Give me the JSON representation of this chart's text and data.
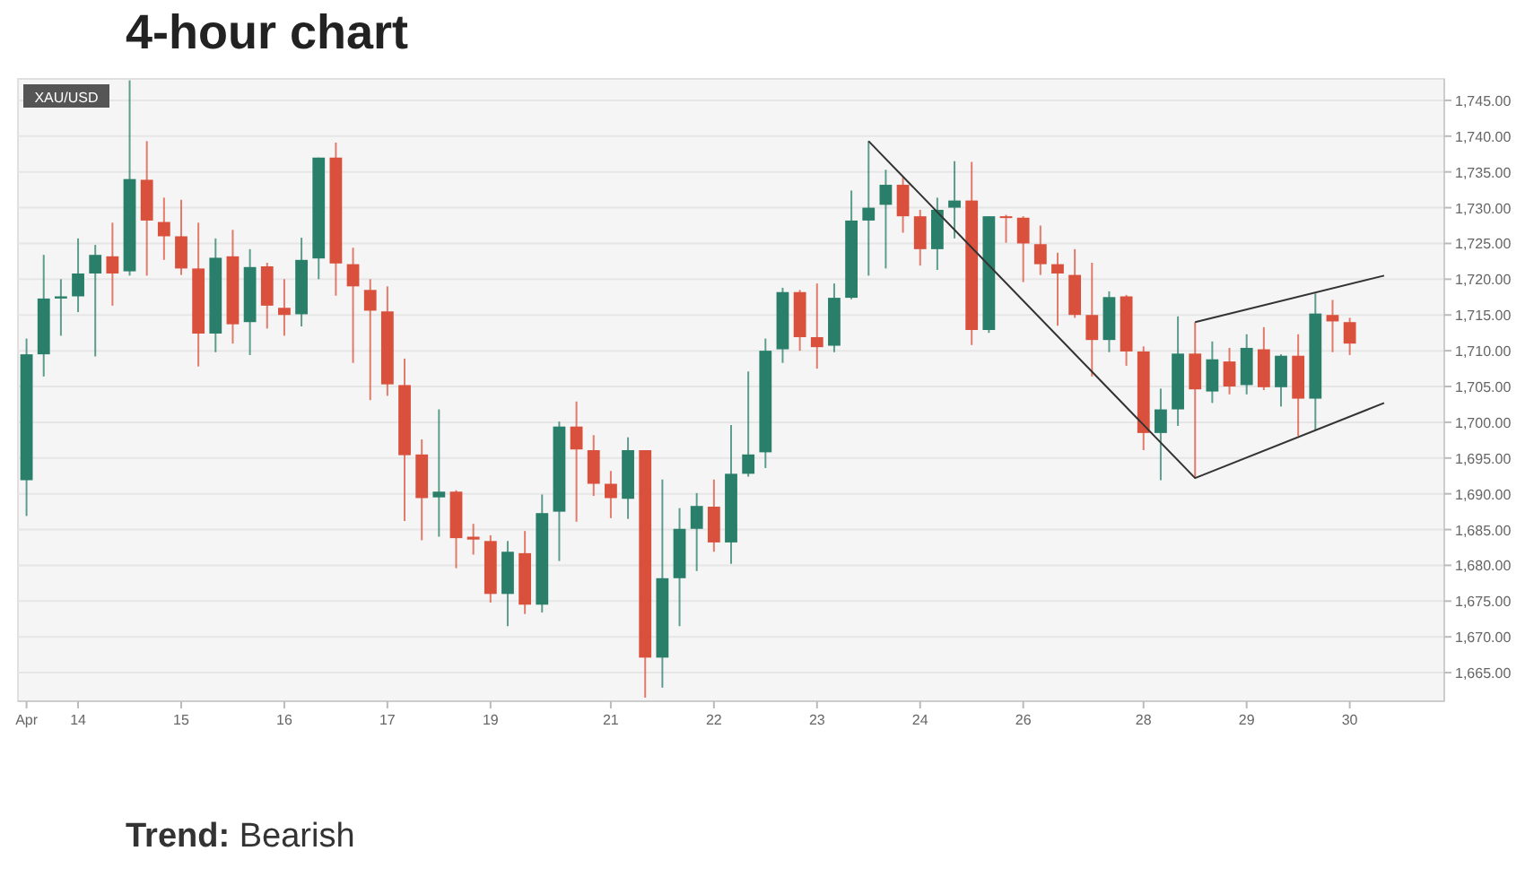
{
  "chart_data": {
    "type": "candlestick",
    "title": "4-hour chart",
    "subtitle": "XAU/USD",
    "categories": [
      "Apr",
      null,
      null,
      "14",
      null,
      null,
      null,
      null,
      null,
      "15",
      null,
      null,
      null,
      null,
      null,
      "16",
      null,
      null,
      null,
      null,
      null,
      "17",
      null,
      null,
      null,
      null,
      null,
      "19",
      null,
      null,
      null,
      null,
      null,
      null,
      "21",
      null,
      null,
      null,
      null,
      null,
      "22",
      null,
      null,
      null,
      null,
      null,
      "23",
      null,
      null,
      null,
      null,
      null,
      "24",
      null,
      null,
      null,
      null,
      null,
      "26",
      null,
      null,
      null,
      null,
      null,
      null,
      "28",
      null,
      null,
      null,
      null,
      null,
      "29",
      null,
      null,
      null,
      null,
      null,
      "30",
      null,
      null,
      null,
      null,
      null
    ],
    "ohlc": [
      [
        1691.9,
        1711.7,
        1686.9,
        1709.5
      ],
      [
        1709.5,
        1723.4,
        1706.4,
        1717.3
      ],
      [
        1717.3,
        1720.0,
        1712.1,
        1717.6
      ],
      [
        1717.6,
        1725.7,
        1715.4,
        1720.8
      ],
      [
        1720.8,
        1724.8,
        1709.2,
        1723.4
      ],
      [
        1723.2,
        1727.9,
        1716.3,
        1720.8
      ],
      [
        1721.1,
        1747.8,
        1720.5,
        1734.0
      ],
      [
        1733.9,
        1739.3,
        1720.5,
        1728.2
      ],
      [
        1728.0,
        1731.4,
        1722.7,
        1726.0
      ],
      [
        1726.0,
        1731.1,
        1720.6,
        1721.5
      ],
      [
        1721.5,
        1727.9,
        1707.8,
        1712.4
      ],
      [
        1712.4,
        1725.7,
        1709.8,
        1723.0
      ],
      [
        1723.2,
        1726.9,
        1711.0,
        1713.7
      ],
      [
        1714.0,
        1724.2,
        1709.4,
        1721.7
      ],
      [
        1721.8,
        1722.3,
        1713.1,
        1716.3
      ],
      [
        1716.0,
        1720.0,
        1712.1,
        1715.0
      ],
      [
        1715.1,
        1725.8,
        1713.4,
        1722.7
      ],
      [
        1722.9,
        1737.0,
        1720.0,
        1737.0
      ],
      [
        1737.0,
        1739.1,
        1717.7,
        1722.2
      ],
      [
        1722.1,
        1724.4,
        1708.3,
        1719.0
      ],
      [
        1718.5,
        1720.0,
        1703.1,
        1715.6
      ],
      [
        1715.5,
        1719.0,
        1703.7,
        1705.3
      ],
      [
        1705.2,
        1708.9,
        1686.2,
        1695.4
      ],
      [
        1695.5,
        1697.6,
        1683.5,
        1689.4
      ],
      [
        1689.5,
        1701.8,
        1684.0,
        1690.3
      ],
      [
        1690.3,
        1690.5,
        1679.6,
        1683.8
      ],
      [
        1684.0,
        1685.8,
        1681.5,
        1683.6
      ],
      [
        1683.4,
        1684.2,
        1674.8,
        1676.0
      ],
      [
        1676.0,
        1683.4,
        1671.5,
        1681.9
      ],
      [
        1681.7,
        1684.8,
        1673.2,
        1674.5
      ],
      [
        1674.5,
        1689.9,
        1673.4,
        1687.3
      ],
      [
        1687.5,
        1700.1,
        1680.6,
        1699.4
      ],
      [
        1699.4,
        1702.9,
        1686.1,
        1696.2
      ],
      [
        1696.1,
        1698.2,
        1689.7,
        1691.4
      ],
      [
        1691.4,
        1693.2,
        1686.6,
        1689.4
      ],
      [
        1689.3,
        1697.9,
        1686.5,
        1696.1
      ],
      [
        1696.1,
        1696.1,
        1661.5,
        1667.1
      ],
      [
        1667.1,
        1692.0,
        1662.9,
        1678.2
      ],
      [
        1678.2,
        1688.0,
        1671.5,
        1685.1
      ],
      [
        1685.1,
        1690.1,
        1679.2,
        1688.3
      ],
      [
        1688.2,
        1692.0,
        1681.9,
        1683.2
      ],
      [
        1683.2,
        1699.6,
        1680.2,
        1692.8
      ],
      [
        1692.8,
        1707.1,
        1692.4,
        1695.5
      ],
      [
        1695.8,
        1711.7,
        1693.6,
        1710.0
      ],
      [
        1710.2,
        1718.8,
        1708.3,
        1718.2
      ],
      [
        1718.2,
        1718.5,
        1710.0,
        1711.9
      ],
      [
        1711.9,
        1719.4,
        1707.5,
        1710.5
      ],
      [
        1710.7,
        1719.4,
        1709.8,
        1717.4
      ],
      [
        1717.4,
        1732.4,
        1717.2,
        1728.2
      ],
      [
        1728.2,
        1739.3,
        1720.5,
        1730.0
      ],
      [
        1730.4,
        1735.3,
        1721.5,
        1733.2
      ],
      [
        1733.2,
        1734.2,
        1726.5,
        1728.8
      ],
      [
        1728.8,
        1729.7,
        1721.9,
        1724.2
      ],
      [
        1724.2,
        1731.4,
        1721.3,
        1729.7
      ],
      [
        1730.0,
        1736.5,
        1725.7,
        1731.0
      ],
      [
        1731.0,
        1736.4,
        1710.8,
        1712.9
      ],
      [
        1712.9,
        1728.8,
        1712.5,
        1728.8
      ],
      [
        1728.8,
        1729.0,
        1725.1,
        1728.7
      ],
      [
        1728.6,
        1728.8,
        1719.6,
        1725.0
      ],
      [
        1724.9,
        1727.5,
        1720.6,
        1722.1
      ],
      [
        1722.1,
        1723.7,
        1713.5,
        1720.8
      ],
      [
        1720.6,
        1724.2,
        1714.6,
        1715.0
      ],
      [
        1715.0,
        1722.3,
        1706.4,
        1711.5
      ],
      [
        1711.5,
        1718.3,
        1709.8,
        1717.5
      ],
      [
        1717.6,
        1717.8,
        1707.9,
        1709.9
      ],
      [
        1709.9,
        1710.6,
        1696.1,
        1698.5
      ],
      [
        1698.5,
        1704.7,
        1691.9,
        1701.8
      ],
      [
        1701.8,
        1714.8,
        1699.5,
        1709.6
      ],
      [
        1709.6,
        1714.0,
        1692.2,
        1704.6
      ],
      [
        1704.3,
        1711.3,
        1702.7,
        1708.8
      ],
      [
        1708.5,
        1710.4,
        1703.9,
        1705.0
      ],
      [
        1705.2,
        1712.3,
        1703.9,
        1710.4
      ],
      [
        1710.2,
        1713.3,
        1704.5,
        1704.9
      ],
      [
        1704.9,
        1709.5,
        1702.2,
        1709.3
      ],
      [
        1709.3,
        1712.3,
        1698.1,
        1703.3
      ],
      [
        1703.3,
        1718.0,
        1698.9,
        1715.2
      ],
      [
        1715.0,
        1717.1,
        1709.8,
        1714.1
      ],
      [
        1714.0,
        1714.6,
        1709.4,
        1711.0
      ],
      null,
      null,
      null,
      null,
      null
    ],
    "colors": [
      "#2a7f6b",
      "#2a7f6b",
      "#2a7f6b",
      "#2a7f6b",
      "#2a7f6b",
      "#d9513c",
      "#2a7f6b",
      "#d9513c",
      "#d9513c",
      "#d9513c",
      "#d9513c",
      "#2a7f6b",
      "#d9513c",
      "#2a7f6b",
      "#d9513c",
      "#d9513c",
      "#2a7f6b",
      "#2a7f6b",
      "#d9513c",
      "#d9513c",
      "#d9513c",
      "#d9513c",
      "#d9513c",
      "#d9513c",
      "#2a7f6b",
      "#d9513c",
      "#d9513c",
      "#d9513c",
      "#2a7f6b",
      "#d9513c",
      "#2a7f6b",
      "#2a7f6b",
      "#d9513c",
      "#d9513c",
      "#d9513c",
      "#2a7f6b",
      "#d9513c",
      "#2a7f6b",
      "#2a7f6b",
      "#2a7f6b",
      "#d9513c",
      "#2a7f6b",
      "#2a7f6b",
      "#2a7f6b",
      "#2a7f6b",
      "#d9513c",
      "#d9513c",
      "#2a7f6b",
      "#2a7f6b",
      "#2a7f6b",
      "#2a7f6b",
      "#d9513c",
      "#d9513c",
      "#2a7f6b",
      "#2a7f6b",
      "#d9513c",
      "#2a7f6b",
      "#d9513c",
      "#d9513c",
      "#d9513c",
      "#d9513c",
      "#d9513c",
      "#d9513c",
      "#2a7f6b",
      "#d9513c",
      "#d9513c",
      "#2a7f6b",
      "#2a7f6b",
      "#d9513c",
      "#2a7f6b",
      "#d9513c",
      "#2a7f6b",
      "#d9513c",
      "#2a7f6b",
      "#d9513c",
      "#2a7f6b",
      "#d9513c",
      "#d9513c",
      null,
      null,
      null,
      null,
      null
    ],
    "series": [
      {
        "type": "line",
        "color": "#333333",
        "values": [
          null,
          null,
          null,
          null,
          null,
          null,
          null,
          null,
          null,
          null,
          null,
          null,
          null,
          null,
          null,
          null,
          null,
          null,
          null,
          null,
          null,
          null,
          null,
          null,
          null,
          null,
          null,
          null,
          null,
          null,
          null,
          null,
          null,
          null,
          null,
          null,
          null,
          null,
          null,
          null,
          null,
          null,
          null,
          null,
          null,
          null,
          null,
          null,
          null,
          1739.3,
          null,
          null,
          null,
          null,
          null,
          null,
          null,
          null,
          null,
          null,
          null,
          null,
          null,
          null,
          null,
          null,
          null,
          null,
          1692.2,
          null,
          null,
          null,
          null,
          null,
          null,
          null,
          null,
          null,
          null,
          1702.7,
          null,
          null,
          null
        ]
      },
      {
        "type": "line",
        "color": "#333333",
        "values": [
          null,
          null,
          null,
          null,
          null,
          null,
          null,
          null,
          null,
          null,
          null,
          null,
          null,
          null,
          null,
          null,
          null,
          null,
          null,
          null,
          null,
          null,
          null,
          null,
          null,
          null,
          null,
          null,
          null,
          null,
          null,
          null,
          null,
          null,
          null,
          null,
          null,
          null,
          null,
          null,
          null,
          null,
          null,
          null,
          null,
          null,
          null,
          null,
          null,
          null,
          null,
          null,
          null,
          null,
          null,
          null,
          null,
          null,
          null,
          null,
          null,
          null,
          null,
          null,
          null,
          null,
          null,
          null,
          1714.0,
          null,
          null,
          null,
          null,
          null,
          null,
          null,
          null,
          null,
          null,
          1720.5,
          null,
          null,
          null
        ]
      }
    ],
    "ylim": [
      1661,
      1748
    ],
    "yticks": [
      {
        "value": 1665,
        "label": "1,665.00"
      },
      {
        "value": 1670,
        "label": "1,670.00"
      },
      {
        "value": 1675,
        "label": "1,675.00"
      },
      {
        "value": 1680,
        "label": "1,680.00"
      },
      {
        "value": 1685,
        "label": "1,685.00"
      },
      {
        "value": 1690,
        "label": "1,690.00"
      },
      {
        "value": 1695,
        "label": "1,695.00"
      },
      {
        "value": 1700,
        "label": "1,700.00"
      },
      {
        "value": 1705,
        "label": "1,705.00"
      },
      {
        "value": 1710,
        "label": "1,710.00"
      },
      {
        "value": 1715,
        "label": "1,715.00"
      },
      {
        "value": 1720,
        "label": "1,720.00"
      },
      {
        "value": 1725,
        "label": "1,725.00"
      },
      {
        "value": 1730,
        "label": "1,730.00"
      },
      {
        "value": 1735,
        "label": "1,735.00"
      },
      {
        "value": 1740,
        "label": "1,740.00"
      },
      {
        "value": 1745,
        "label": "1,745.00"
      }
    ],
    "grid": "y",
    "annotations": [
      "Trend: Bearish"
    ]
  }
}
